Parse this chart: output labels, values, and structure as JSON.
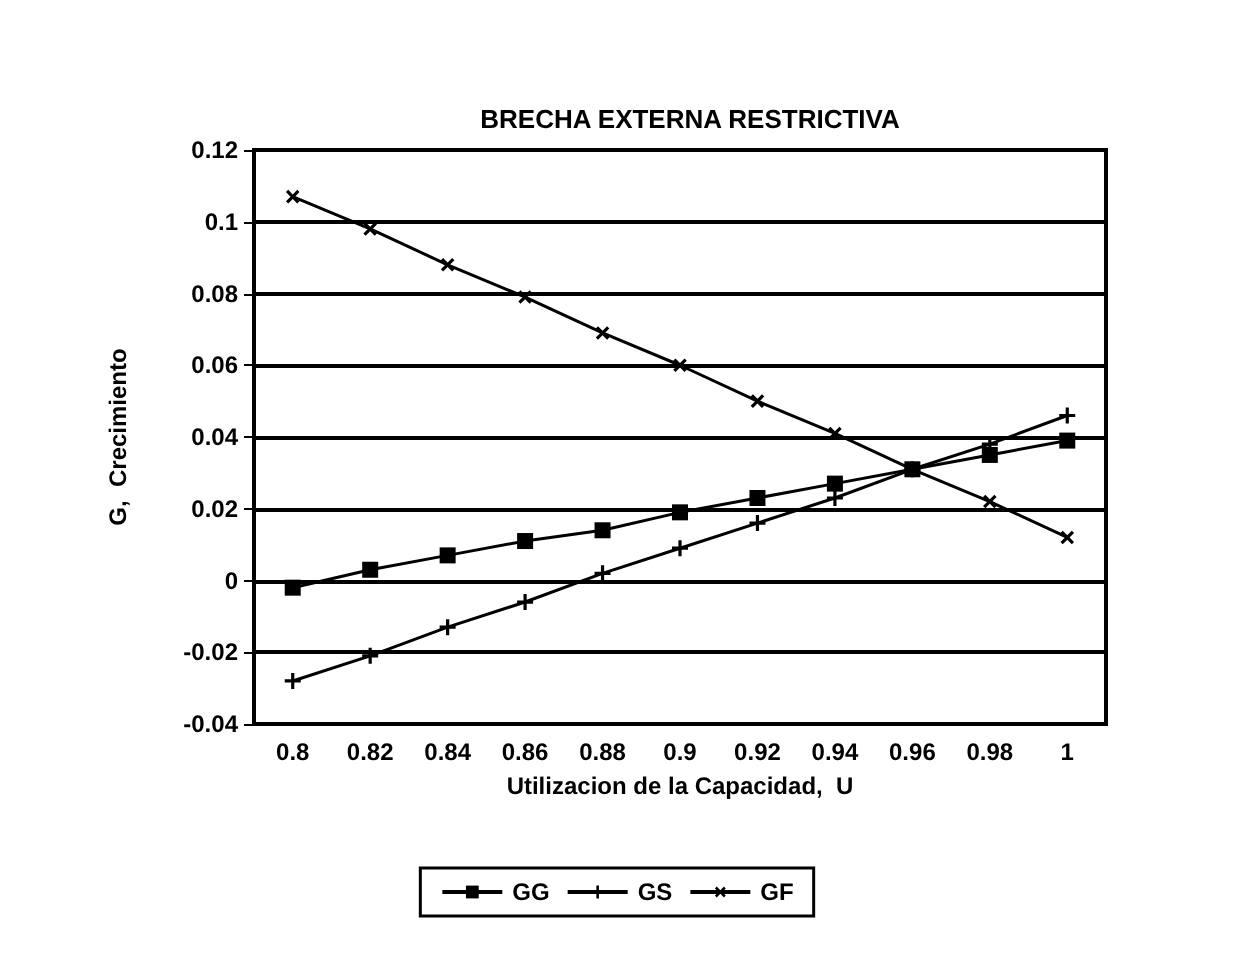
{
  "chart_data": {
    "type": "line",
    "title": "BRECHA EXTERNA RESTRICTIVA",
    "xlabel": "Utilizacion de la Capacidad,  U",
    "ylabel": "G,  Crecimiento",
    "categories": [
      "0.8",
      "0.82",
      "0.84",
      "0.86",
      "0.88",
      "0.9",
      "0.92",
      "0.94",
      "0.96",
      "0.98",
      "1"
    ],
    "series": [
      {
        "name": "GG",
        "color": "#000000",
        "marker": "square",
        "values": [
          -0.002,
          0.003,
          0.007,
          0.011,
          0.014,
          0.019,
          0.023,
          0.027,
          0.031,
          0.035,
          0.039
        ]
      },
      {
        "name": "GS",
        "color": "#000000",
        "marker": "cross",
        "values": [
          -0.028,
          -0.021,
          -0.013,
          -0.006,
          0.002,
          0.009,
          0.016,
          0.023,
          0.031,
          0.038,
          0.046
        ]
      },
      {
        "name": "GF",
        "color": "#000000",
        "marker": "cross",
        "values": [
          0.107,
          0.098,
          0.088,
          0.079,
          0.069,
          0.06,
          0.05,
          0.041,
          0.031,
          0.022,
          0.012
        ]
      }
    ],
    "ylim": [
      -0.04,
      0.12
    ],
    "yticks": [
      -0.04,
      -0.02,
      0,
      0.02,
      0.04,
      0.06,
      0.08,
      0.1,
      0.12
    ],
    "grid": "y",
    "legend": "bottom",
    "line_style": "solid"
  }
}
